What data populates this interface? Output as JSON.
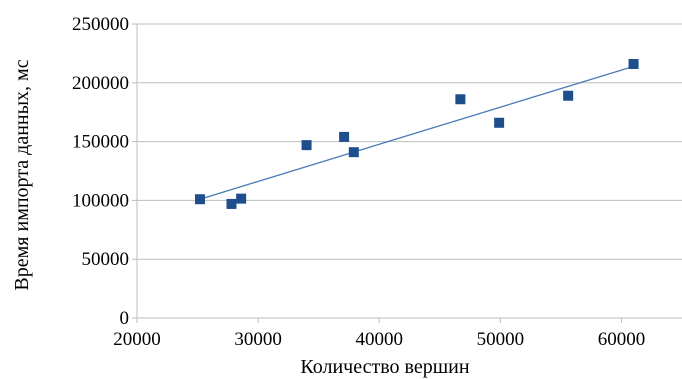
{
  "chart_data": {
    "type": "scatter",
    "xlabel": "Количество вершин",
    "ylabel": "Время импорта данных, мс",
    "xlim": [
      20000,
      65000
    ],
    "ylim": [
      0,
      250000
    ],
    "x_ticks": [
      20000,
      30000,
      40000,
      50000,
      60000
    ],
    "y_ticks": [
      0,
      50000,
      100000,
      150000,
      200000,
      250000
    ],
    "x_tick_labels": [
      "20000",
      "30000",
      "40000",
      "50000",
      "60000"
    ],
    "y_tick_labels": [
      "0",
      "50000",
      "100000",
      "150000",
      "200000",
      "250000"
    ],
    "grid": "horizontal",
    "legend": "none",
    "series": [
      {
        "points": [
          {
            "x": 25200,
            "y": 101000
          },
          {
            "x": 27800,
            "y": 97000
          },
          {
            "x": 28600,
            "y": 101500
          },
          {
            "x": 34000,
            "y": 147000
          },
          {
            "x": 37100,
            "y": 154000
          },
          {
            "x": 37900,
            "y": 141000
          },
          {
            "x": 46700,
            "y": 186000
          },
          {
            "x": 49900,
            "y": 166000
          },
          {
            "x": 55600,
            "y": 189000
          },
          {
            "x": 61000,
            "y": 216000
          }
        ],
        "color": "#1f4e8c"
      }
    ],
    "trendline": {
      "type": "linear",
      "x_range": [
        25200,
        61000
      ],
      "y_range": [
        101000,
        214000
      ],
      "color": "#4a7ab8"
    }
  }
}
